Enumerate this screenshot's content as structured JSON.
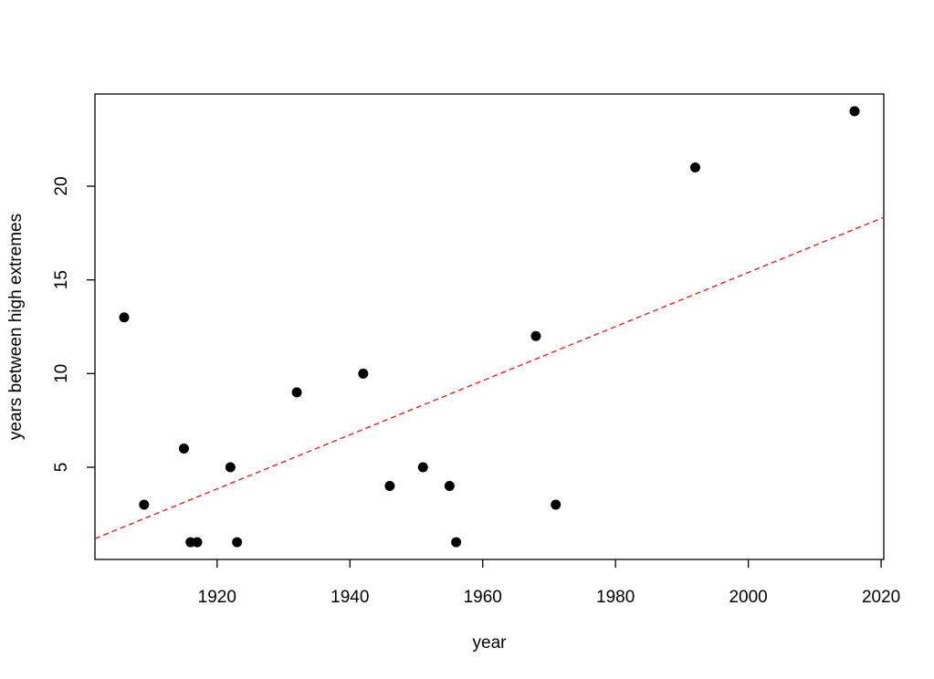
{
  "chart_data": {
    "type": "scatter",
    "x_label": "year",
    "y_label": "years between high extremes",
    "x": [
      1906,
      1909,
      1915,
      1916,
      1917,
      1922,
      1923,
      1932,
      1942,
      1946,
      1951,
      1955,
      1956,
      1968,
      1971,
      1992,
      2016
    ],
    "values": [
      13,
      3,
      6,
      1,
      1,
      5,
      1,
      9,
      10,
      4,
      5,
      4,
      1,
      12,
      3,
      21,
      24
    ],
    "color": "#000000",
    "trend_line": {
      "x": [
        1901.6,
        2020.4
      ],
      "y": [
        1.19,
        18.34
      ],
      "color": "#e8231b"
    },
    "xlim": [
      1901.6,
      2020.4
    ],
    "xticks": [
      1920,
      1940,
      1960,
      1980,
      2000,
      2020
    ],
    "ylim": [
      0.08,
      24.92
    ],
    "yticks": [
      5,
      10,
      15,
      20
    ]
  }
}
